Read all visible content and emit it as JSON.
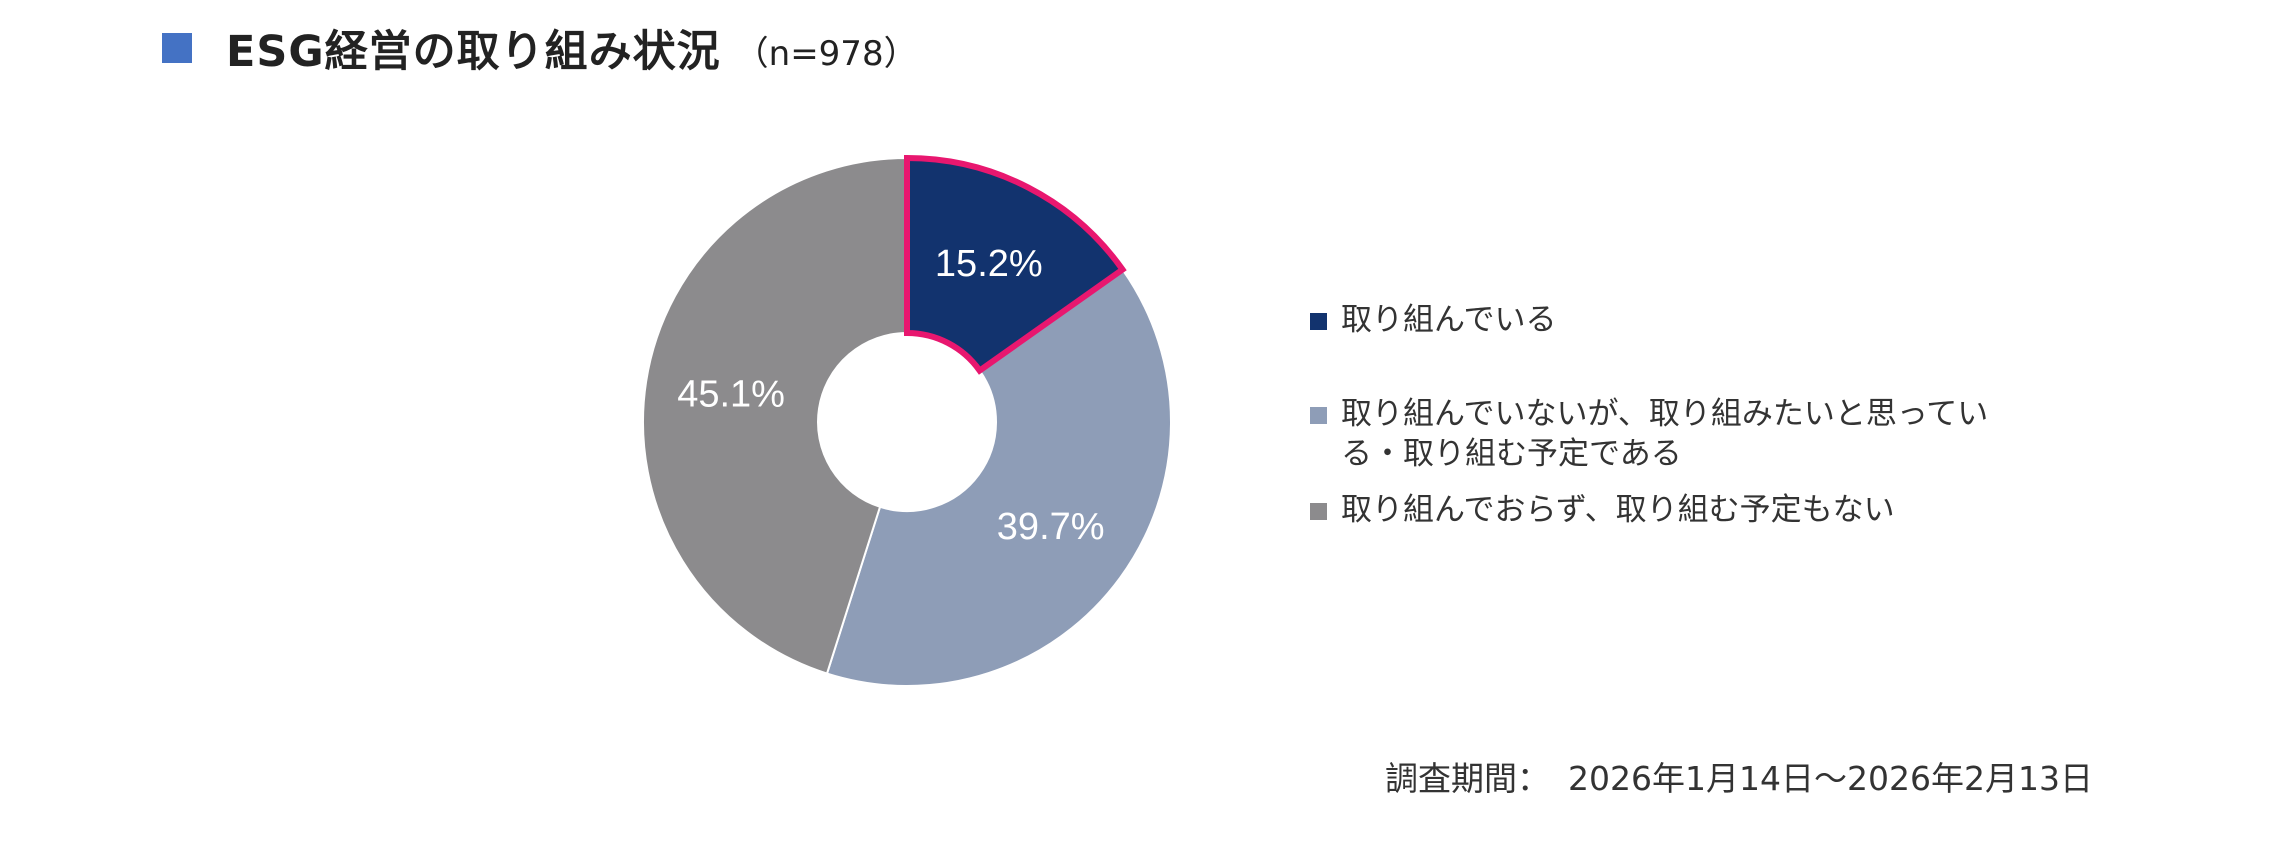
{
  "header": {
    "title": "ESG経営の取り組み状況",
    "sample": "（n=978）",
    "marker_color": "#4472C4"
  },
  "chart_data": {
    "type": "pie",
    "donut": true,
    "title": "ESG経営の取り組み状況",
    "n": 978,
    "unit": "%",
    "start_angle_deg": 0,
    "direction": "clockwise",
    "legend_position": "right",
    "slices": [
      {
        "name": "取り組んでいる",
        "value": 15.2,
        "label": "15.2%",
        "color": "#12336E",
        "highlight": true,
        "highlight_color": "#E8176F"
      },
      {
        "name": "取り組んでいないが、取り組みたいと思っている・取り組む予定である",
        "value": 39.7,
        "label": "39.7%",
        "color": "#8E9DB7",
        "highlight": false
      },
      {
        "name": "取り組んでおらず、取り組む予定もない",
        "value": 45.1,
        "label": "45.1%",
        "color": "#8C8B8D",
        "highlight": false
      }
    ]
  },
  "legend": {
    "items": [
      {
        "label": "取り組んでいる"
      },
      {
        "label": "取り組んでいないが、取り組みたいと思っている・取り組む予定である"
      },
      {
        "label": "取り組んでおらず、取り組む予定もない"
      }
    ]
  },
  "footer": {
    "period_label": "調査期間：",
    "period_value": "2026年1月14日～2026年2月13日"
  }
}
